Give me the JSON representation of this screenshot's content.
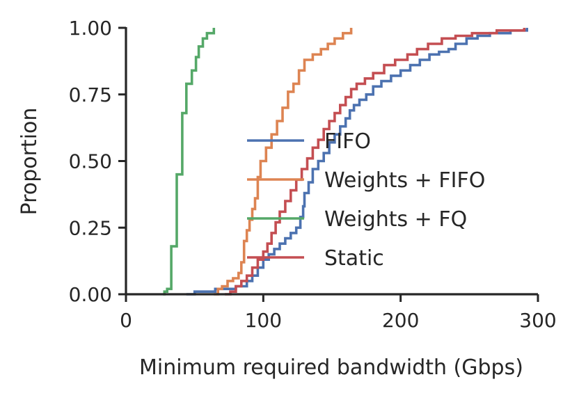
{
  "chart_data": {
    "type": "line",
    "subtype": "step-ecdf",
    "xlabel": "Minimum required bandwidth (Gbps)",
    "ylabel": "Proportion",
    "xlim": [
      0,
      300
    ],
    "ylim": [
      0,
      1
    ],
    "x_ticks": [
      0,
      100,
      200,
      300
    ],
    "x_tick_labels": [
      "0",
      "100",
      "200",
      "300"
    ],
    "y_ticks": [
      0,
      0.25,
      0.5,
      0.75,
      1.0
    ],
    "y_tick_labels": [
      "0.00",
      "0.25",
      "0.50",
      "0.75",
      "1.00"
    ],
    "grid": false,
    "legend_position": "center-right",
    "series": [
      {
        "name": "FIFO",
        "color": "#4c72b0",
        "points": [
          [
            44,
            0
          ],
          [
            50,
            0.01
          ],
          [
            65,
            0.02
          ],
          [
            80,
            0.03
          ],
          [
            88,
            0.05
          ],
          [
            92,
            0.07
          ],
          [
            96,
            0.1
          ],
          [
            100,
            0.13
          ],
          [
            104,
            0.15
          ],
          [
            108,
            0.17
          ],
          [
            112,
            0.19
          ],
          [
            116,
            0.21
          ],
          [
            120,
            0.23
          ],
          [
            124,
            0.25
          ],
          [
            127,
            0.29
          ],
          [
            129,
            0.33
          ],
          [
            130,
            0.38
          ],
          [
            133,
            0.42
          ],
          [
            136,
            0.47
          ],
          [
            140,
            0.5
          ],
          [
            144,
            0.53
          ],
          [
            148,
            0.57
          ],
          [
            152,
            0.6
          ],
          [
            156,
            0.63
          ],
          [
            160,
            0.66
          ],
          [
            163,
            0.69
          ],
          [
            166,
            0.71
          ],
          [
            170,
            0.73
          ],
          [
            175,
            0.75
          ],
          [
            180,
            0.78
          ],
          [
            186,
            0.8
          ],
          [
            193,
            0.82
          ],
          [
            200,
            0.84
          ],
          [
            207,
            0.86
          ],
          [
            214,
            0.88
          ],
          [
            221,
            0.9
          ],
          [
            228,
            0.91
          ],
          [
            235,
            0.92
          ],
          [
            240,
            0.94
          ],
          [
            248,
            0.96
          ],
          [
            256,
            0.97
          ],
          [
            265,
            0.98
          ],
          [
            280,
            0.99
          ],
          [
            292,
            1.0
          ]
        ]
      },
      {
        "name": "Weights + FIFO",
        "color": "#dd8452",
        "points": [
          [
            64,
            0
          ],
          [
            67,
            0.02
          ],
          [
            70,
            0.03
          ],
          [
            74,
            0.05
          ],
          [
            78,
            0.06
          ],
          [
            82,
            0.08
          ],
          [
            84,
            0.12
          ],
          [
            86,
            0.2
          ],
          [
            88,
            0.24
          ],
          [
            90,
            0.28
          ],
          [
            92,
            0.32
          ],
          [
            94,
            0.36
          ],
          [
            96,
            0.44
          ],
          [
            98,
            0.5
          ],
          [
            102,
            0.55
          ],
          [
            106,
            0.6
          ],
          [
            110,
            0.65
          ],
          [
            114,
            0.7
          ],
          [
            118,
            0.76
          ],
          [
            122,
            0.79
          ],
          [
            126,
            0.84
          ],
          [
            130,
            0.88
          ],
          [
            136,
            0.9
          ],
          [
            142,
            0.92
          ],
          [
            147,
            0.94
          ],
          [
            152,
            0.96
          ],
          [
            158,
            0.98
          ],
          [
            164,
            1.0
          ]
        ]
      },
      {
        "name": "Weights + FQ",
        "color": "#55a868",
        "points": [
          [
            27,
            0
          ],
          [
            28,
            0.01
          ],
          [
            30,
            0.02
          ],
          [
            33,
            0.18
          ],
          [
            37,
            0.45
          ],
          [
            41,
            0.68
          ],
          [
            44,
            0.79
          ],
          [
            48,
            0.84
          ],
          [
            51,
            0.89
          ],
          [
            53,
            0.93
          ],
          [
            56,
            0.96
          ],
          [
            59,
            0.98
          ],
          [
            64,
            1.0
          ]
        ]
      },
      {
        "name": "Static",
        "color": "#c44e52",
        "points": [
          [
            72,
            0
          ],
          [
            76,
            0.01
          ],
          [
            80,
            0.03
          ],
          [
            84,
            0.05
          ],
          [
            88,
            0.07
          ],
          [
            92,
            0.1
          ],
          [
            96,
            0.13
          ],
          [
            100,
            0.16
          ],
          [
            103,
            0.19
          ],
          [
            106,
            0.23
          ],
          [
            109,
            0.27
          ],
          [
            112,
            0.31
          ],
          [
            116,
            0.35
          ],
          [
            120,
            0.39
          ],
          [
            124,
            0.43
          ],
          [
            128,
            0.47
          ],
          [
            132,
            0.51
          ],
          [
            136,
            0.55
          ],
          [
            140,
            0.58
          ],
          [
            144,
            0.62
          ],
          [
            148,
            0.65
          ],
          [
            152,
            0.68
          ],
          [
            156,
            0.71
          ],
          [
            160,
            0.74
          ],
          [
            164,
            0.77
          ],
          [
            168,
            0.79
          ],
          [
            174,
            0.81
          ],
          [
            180,
            0.83
          ],
          [
            188,
            0.86
          ],
          [
            196,
            0.88
          ],
          [
            205,
            0.9
          ],
          [
            212,
            0.92
          ],
          [
            220,
            0.94
          ],
          [
            230,
            0.96
          ],
          [
            240,
            0.97
          ],
          [
            252,
            0.98
          ],
          [
            270,
            0.99
          ],
          [
            290,
            1.0
          ]
        ]
      }
    ]
  }
}
